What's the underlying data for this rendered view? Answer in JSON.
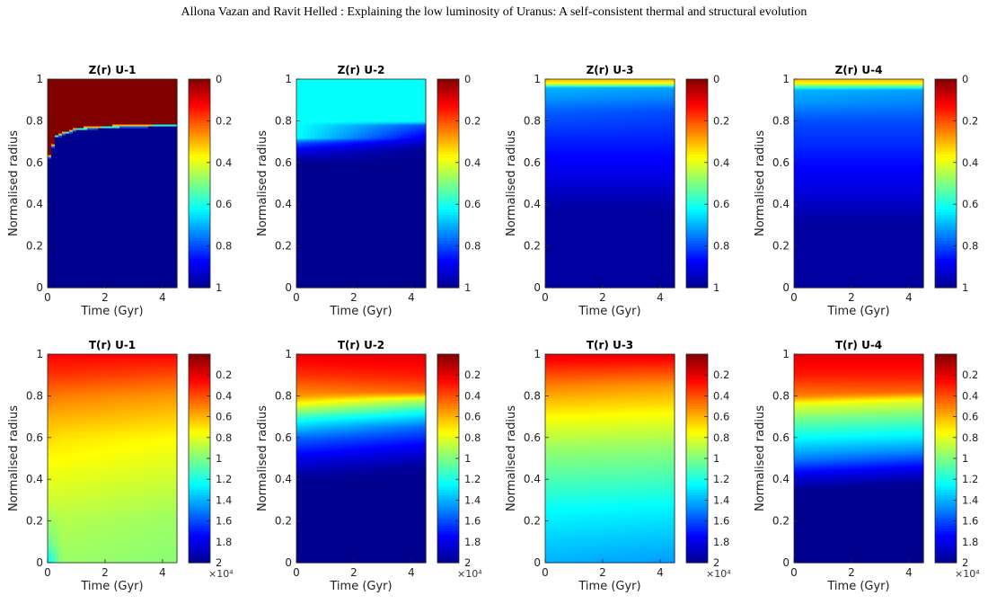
{
  "header": {
    "text": "Allona Vazan  and Ravit Helled : Explaining the low luminosity of Uranus: A self-consistent thermal and structural evolution"
  },
  "colors": {
    "jet": [
      "#00008f",
      "#0000ff",
      "#0080ff",
      "#00ffff",
      "#80ff80",
      "#ffff00",
      "#ff8000",
      "#ff0000",
      "#800000"
    ],
    "zreversed": true
  },
  "chart_data": [
    {
      "type": "heatmap",
      "title": "Z(r) U-1",
      "xlabel": "Time (Gyr)",
      "ylabel": "Normalised radius",
      "xlim": [
        0,
        4.5
      ],
      "ylim": [
        0,
        1
      ],
      "xticks": [
        "0",
        "2",
        "4"
      ],
      "yticks": [
        "0",
        "0.2",
        "0.4",
        "0.6",
        "0.8",
        "1"
      ],
      "colorbar": {
        "ticks": [
          "0",
          "0.2",
          "0.4",
          "0.6",
          "0.8",
          "1"
        ],
        "range": [
          0,
          1
        ],
        "reversed": true,
        "exponent": ""
      },
      "field": {
        "kind": "interface",
        "below_value": 1.0,
        "above_value": 0.0,
        "interface": [
          [
            0,
            0.6
          ],
          [
            0.3,
            0.72
          ],
          [
            1,
            0.755
          ],
          [
            2,
            0.765
          ],
          [
            3,
            0.77
          ],
          [
            4.5,
            0.775
          ]
        ],
        "transition_band": [
          0.78,
          0.6,
          0.3
        ]
      }
    },
    {
      "type": "heatmap",
      "title": "Z(r) U-2",
      "xlabel": "Time (Gyr)",
      "ylabel": "Normalised radius",
      "xlim": [
        0,
        4.5
      ],
      "ylim": [
        0,
        1
      ],
      "xticks": [
        "0",
        "2",
        "4"
      ],
      "yticks": [
        "0",
        "0.2",
        "0.4",
        "0.6",
        "0.8",
        "1"
      ],
      "colorbar": {
        "ticks": [
          "0",
          "0.2",
          "0.4",
          "0.6",
          "0.8",
          "1"
        ],
        "range": [
          0,
          1
        ],
        "reversed": true,
        "exponent": ""
      },
      "field": {
        "kind": "profile",
        "profiles": [
          {
            "t": 0.0,
            "r": [
              0,
              0.6,
              0.66,
              0.7,
              0.72,
              1
            ],
            "v": [
              1,
              1,
              0.9,
              0.78,
              0.62,
              0.62
            ]
          },
          {
            "t": 4.5,
            "r": [
              0,
              0.66,
              0.72,
              0.78,
              0.8,
              1
            ],
            "v": [
              1,
              1,
              0.9,
              0.8,
              0.62,
              0.62
            ]
          }
        ]
      }
    },
    {
      "type": "heatmap",
      "title": "Z(r) U-3",
      "xlabel": "Time (Gyr)",
      "ylabel": "Normalised radius",
      "xlim": [
        0,
        4.5
      ],
      "ylim": [
        0,
        1
      ],
      "xticks": [
        "0",
        "2",
        "4"
      ],
      "yticks": [
        "0",
        "0.2",
        "0.4",
        "0.6",
        "0.8",
        "1"
      ],
      "colorbar": {
        "ticks": [
          "0",
          "0.2",
          "0.4",
          "0.6",
          "0.8",
          "1"
        ],
        "range": [
          0,
          1
        ],
        "reversed": true,
        "exponent": ""
      },
      "field": {
        "kind": "profile",
        "profiles": [
          {
            "t": 0.0,
            "r": [
              0,
              0.38,
              0.55,
              0.7,
              0.85,
              0.92,
              0.96,
              0.98,
              1
            ],
            "v": [
              0.98,
              0.98,
              0.9,
              0.85,
              0.78,
              0.72,
              0.7,
              0.4,
              0.3
            ]
          },
          {
            "t": 4.5,
            "r": [
              0,
              0.38,
              0.55,
              0.7,
              0.85,
              0.92,
              0.96,
              0.98,
              1
            ],
            "v": [
              0.98,
              0.98,
              0.9,
              0.85,
              0.8,
              0.74,
              0.72,
              0.4,
              0.3
            ]
          }
        ]
      }
    },
    {
      "type": "heatmap",
      "title": "Z(r) U-4",
      "xlabel": "Time (Gyr)",
      "ylabel": "Normalised radius",
      "xlim": [
        0,
        4.5
      ],
      "ylim": [
        0,
        1
      ],
      "xticks": [
        "0",
        "2",
        "4"
      ],
      "yticks": [
        "0",
        "0.2",
        "0.4",
        "0.6",
        "0.8",
        "1"
      ],
      "colorbar": {
        "ticks": [
          "0",
          "0.2",
          "0.4",
          "0.6",
          "0.8",
          "1"
        ],
        "range": [
          0,
          1
        ],
        "reversed": true,
        "exponent": ""
      },
      "field": {
        "kind": "profile",
        "profiles": [
          {
            "t": 0.0,
            "r": [
              0,
              0.32,
              0.5,
              0.65,
              0.8,
              0.9,
              0.95,
              0.98,
              1
            ],
            "v": [
              0.98,
              0.98,
              0.9,
              0.85,
              0.8,
              0.72,
              0.7,
              0.4,
              0.3
            ]
          },
          {
            "t": 4.5,
            "r": [
              0,
              0.32,
              0.5,
              0.65,
              0.8,
              0.9,
              0.95,
              0.98,
              1
            ],
            "v": [
              0.98,
              0.98,
              0.9,
              0.85,
              0.8,
              0.74,
              0.72,
              0.4,
              0.3
            ]
          }
        ]
      }
    },
    {
      "type": "heatmap",
      "title": "T(r) U-1",
      "xlabel": "Time (Gyr)",
      "ylabel": "Normalised radius",
      "xlim": [
        0,
        4.5
      ],
      "ylim": [
        0,
        1
      ],
      "xticks": [
        "0",
        "2",
        "4"
      ],
      "yticks": [
        "0",
        "0.2",
        "0.4",
        "0.6",
        "0.8",
        "1"
      ],
      "colorbar": {
        "ticks": [
          "0.2",
          "0.4",
          "0.6",
          "0.8",
          "1",
          "1.2",
          "1.4",
          "1.6",
          "1.8",
          "2"
        ],
        "range": [
          0,
          2
        ],
        "reversed": true,
        "exponent": "×10⁴"
      },
      "field": {
        "kind": "profile",
        "profiles": [
          {
            "t": 0.0,
            "r": [
              0,
              0.1,
              0.3,
              0.5,
              0.7,
              0.9,
              1
            ],
            "v": [
              1.3,
              1.05,
              0.85,
              0.75,
              0.6,
              0.35,
              0.25
            ]
          },
          {
            "t": 0.5,
            "r": [
              0,
              0.2,
              0.4,
              0.6,
              0.8,
              0.9,
              1
            ],
            "v": [
              0.95,
              0.9,
              0.8,
              0.7,
              0.5,
              0.35,
              0.25
            ]
          },
          {
            "t": 4.5,
            "r": [
              0,
              0.2,
              0.4,
              0.6,
              0.8,
              0.9,
              1
            ],
            "v": [
              0.98,
              0.95,
              0.85,
              0.75,
              0.55,
              0.4,
              0.25
            ]
          }
        ]
      }
    },
    {
      "type": "heatmap",
      "title": "T(r) U-2",
      "xlabel": "Time (Gyr)",
      "ylabel": "Normalised radius",
      "xlim": [
        0,
        4.5
      ],
      "ylim": [
        0,
        1
      ],
      "xticks": [
        "0",
        "2",
        "4"
      ],
      "yticks": [
        "0",
        "0.2",
        "0.4",
        "0.6",
        "0.8",
        "1"
      ],
      "colorbar": {
        "ticks": [
          "0.2",
          "0.4",
          "0.6",
          "0.8",
          "1",
          "1.2",
          "1.4",
          "1.6",
          "1.8",
          "2"
        ],
        "range": [
          0,
          2
        ],
        "reversed": true,
        "exponent": "×10⁴"
      },
      "field": {
        "kind": "profile",
        "profiles": [
          {
            "t": 0.0,
            "r": [
              0,
              0.4,
              0.5,
              0.6,
              0.68,
              0.74,
              0.8,
              0.9,
              1
            ],
            "v": [
              2,
              2,
              1.8,
              1.55,
              1.25,
              0.9,
              0.55,
              0.35,
              0.2
            ]
          },
          {
            "t": 4.5,
            "r": [
              0,
              0.45,
              0.55,
              0.65,
              0.72,
              0.78,
              0.82,
              0.9,
              1
            ],
            "v": [
              2,
              2,
              1.8,
              1.55,
              1.25,
              0.9,
              0.45,
              0.3,
              0.2
            ]
          }
        ]
      }
    },
    {
      "type": "heatmap",
      "title": "T(r) U-3",
      "xlabel": "Time (Gyr)",
      "ylabel": "Normalised radius",
      "xlim": [
        0,
        4.5
      ],
      "ylim": [
        0,
        1
      ],
      "xticks": [
        "0",
        "2",
        "4"
      ],
      "yticks": [
        "0",
        "0.2",
        "0.4",
        "0.6",
        "0.8",
        "1"
      ],
      "colorbar": {
        "ticks": [
          "0.2",
          "0.4",
          "0.6",
          "0.8",
          "1",
          "1.2",
          "1.4",
          "1.6",
          "1.8",
          "2"
        ],
        "range": [
          0,
          2
        ],
        "reversed": true,
        "exponent": "×10⁴"
      },
      "field": {
        "kind": "profile",
        "profiles": [
          {
            "t": 0.0,
            "r": [
              0,
              0.1,
              0.25,
              0.4,
              0.55,
              0.7,
              0.85,
              0.95,
              1
            ],
            "v": [
              1.4,
              1.35,
              1.25,
              1.1,
              0.95,
              0.75,
              0.5,
              0.3,
              0.2
            ]
          },
          {
            "t": 4.5,
            "r": [
              0,
              0.1,
              0.25,
              0.4,
              0.55,
              0.7,
              0.85,
              0.95,
              1
            ],
            "v": [
              1.45,
              1.38,
              1.28,
              1.12,
              0.97,
              0.78,
              0.55,
              0.32,
              0.2
            ]
          }
        ]
      }
    },
    {
      "type": "heatmap",
      "title": "T(r) U-4",
      "xlabel": "Time (Gyr)",
      "ylabel": "Normalised radius",
      "xlim": [
        0,
        4.5
      ],
      "ylim": [
        0,
        1
      ],
      "xticks": [
        "0",
        "2",
        "4"
      ],
      "yticks": [
        "0",
        "0.2",
        "0.4",
        "0.6",
        "0.8",
        "1"
      ],
      "colorbar": {
        "ticks": [
          "0.2",
          "0.4",
          "0.6",
          "0.8",
          "1",
          "1.2",
          "1.4",
          "1.6",
          "1.8",
          "2"
        ],
        "range": [
          0,
          2
        ],
        "reversed": true,
        "exponent": "×10⁴"
      },
      "field": {
        "kind": "profile",
        "profiles": [
          {
            "t": 0.0,
            "r": [
              0,
              0.35,
              0.42,
              0.5,
              0.58,
              0.68,
              0.76,
              0.8,
              0.9,
              1
            ],
            "v": [
              2,
              2,
              1.8,
              1.5,
              1.3,
              1.05,
              0.8,
              0.5,
              0.3,
              0.2
            ]
          },
          {
            "t": 4.5,
            "r": [
              0,
              0.38,
              0.45,
              0.53,
              0.6,
              0.7,
              0.78,
              0.82,
              0.9,
              1
            ],
            "v": [
              2,
              2,
              1.8,
              1.5,
              1.3,
              1.05,
              0.8,
              0.45,
              0.3,
              0.2
            ]
          }
        ]
      }
    }
  ]
}
